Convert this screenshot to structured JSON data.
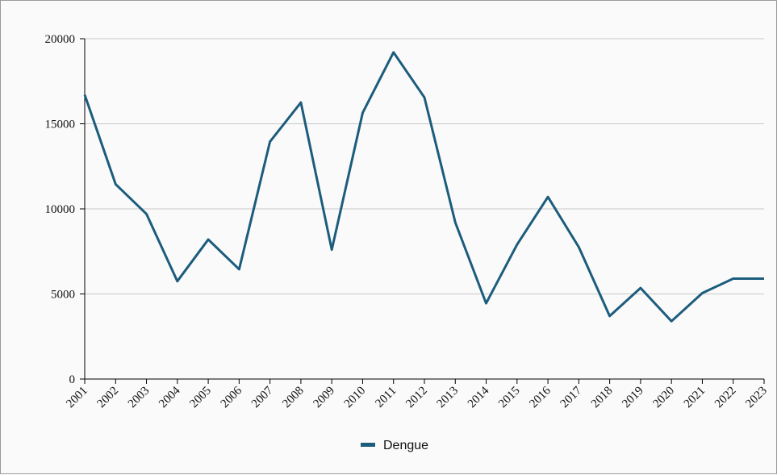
{
  "chart_data": {
    "type": "line",
    "title": "",
    "xlabel": "",
    "ylabel": "",
    "categories": [
      "2001",
      "2002",
      "2003",
      "2004",
      "2005",
      "2006",
      "2007",
      "2008",
      "2009",
      "2010",
      "2011",
      "2012",
      "2013",
      "2014",
      "2015",
      "2016",
      "2017",
      "2018",
      "2019",
      "2020",
      "2021",
      "2022",
      "2023"
    ],
    "series": [
      {
        "name": "Dengue",
        "color": "#1c5c7c",
        "values": [
          16700,
          11450,
          9700,
          5750,
          8200,
          6450,
          13950,
          16250,
          7600,
          15650,
          19200,
          16550,
          9200,
          4450,
          7900,
          10700,
          7750,
          3700,
          5350,
          3400,
          5050,
          5900,
          5900
        ]
      }
    ],
    "ylim": [
      0,
      20000
    ],
    "yticks": [
      0,
      5000,
      10000,
      15000,
      20000
    ],
    "grid": "horizontal",
    "legend_position": "bottom-center"
  }
}
